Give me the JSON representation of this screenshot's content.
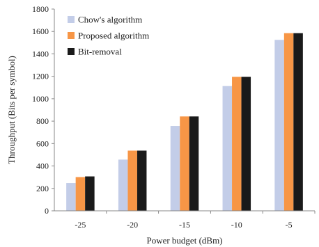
{
  "chart_data": {
    "type": "bar",
    "categories": [
      "-25",
      "-20",
      "-15",
      "-10",
      "-5"
    ],
    "series": [
      {
        "name": "Chow's algorithm",
        "color": "#c3cde8",
        "values": [
          248,
          457,
          757,
          1113,
          1525
        ]
      },
      {
        "name": "Proposed algorithm",
        "color": "#f79646",
        "values": [
          301,
          537,
          842,
          1195,
          1585
        ]
      },
      {
        "name": "Bit-removal",
        "color": "#1a1a1a",
        "values": [
          307,
          537,
          842,
          1195,
          1585
        ]
      }
    ],
    "xlabel": "Power budget (dBm)",
    "ylabel": "Throughput (Bits per symbol)",
    "ylim": [
      0,
      1800
    ],
    "yticks": [
      "0",
      "200",
      "400",
      "600",
      "800",
      "1000",
      "1200",
      "1400",
      "1600",
      "1800"
    ],
    "grid": false,
    "legend_position": "top-left"
  }
}
